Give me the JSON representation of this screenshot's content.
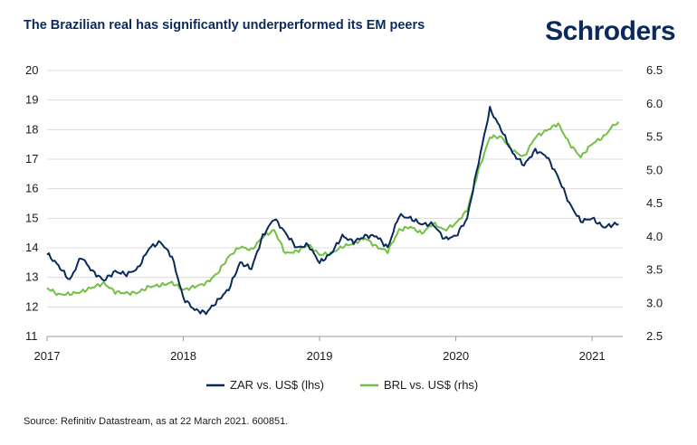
{
  "header": {
    "title": "The Brazilian real has significantly underperformed its EM peers",
    "brand": "Schroders"
  },
  "footer": {
    "source": "Source: Refinitiv Datastream, as at 22 March 2021. 600851."
  },
  "colors": {
    "zar": "#0b2a5b",
    "brl": "#72c045",
    "grid": "#dcdcdc",
    "axis": "#9a9a9a"
  },
  "chart_data": {
    "type": "line",
    "title": "The Brazilian real has significantly underperformed its EM peers",
    "grid": "horizontal",
    "legend_position": "bottom-center",
    "x_ticks": [
      "2017",
      "2018",
      "2019",
      "2020",
      "2021"
    ],
    "xlim": [
      "2017-01",
      "2021-03"
    ],
    "y_left": {
      "ylim": [
        11,
        20
      ],
      "ticks": [
        "20",
        "19",
        "18",
        "17",
        "16",
        "15",
        "14",
        "13",
        "12",
        "11"
      ]
    },
    "y_right": {
      "ylim": [
        2.5,
        6.5
      ],
      "ticks": [
        "6.5",
        "6.0",
        "5.5",
        "5.0",
        "4.5",
        "4.0",
        "3.5",
        "3.0",
        "2.5"
      ]
    },
    "series": [
      {
        "name": "ZAR vs. US$ (lhs)",
        "axis": "left",
        "x": [
          "2017-01",
          "2017-02",
          "2017-03",
          "2017-04",
          "2017-05",
          "2017-06",
          "2017-07",
          "2017-08",
          "2017-09",
          "2017-10",
          "2017-11",
          "2017-12",
          "2018-01",
          "2018-02",
          "2018-03",
          "2018-04",
          "2018-05",
          "2018-06",
          "2018-07",
          "2018-08",
          "2018-09",
          "2018-10",
          "2018-11",
          "2018-12",
          "2019-01",
          "2019-02",
          "2019-03",
          "2019-04",
          "2019-05",
          "2019-06",
          "2019-07",
          "2019-08",
          "2019-09",
          "2019-10",
          "2019-11",
          "2019-12",
          "2020-01",
          "2020-02",
          "2020-03",
          "2020-04",
          "2020-05",
          "2020-06",
          "2020-07",
          "2020-08",
          "2020-09",
          "2020-10",
          "2020-11",
          "2020-12",
          "2021-01",
          "2021-02",
          "2021-03"
        ],
        "values": [
          13.8,
          13.4,
          12.9,
          13.7,
          13.2,
          12.9,
          13.2,
          13.1,
          13.3,
          14.0,
          14.2,
          13.7,
          12.3,
          11.9,
          11.8,
          12.2,
          12.6,
          13.5,
          13.3,
          14.4,
          15.0,
          14.5,
          14.0,
          14.1,
          13.5,
          13.8,
          14.4,
          14.2,
          14.4,
          14.4,
          14.0,
          15.1,
          15.0,
          14.8,
          14.8,
          14.3,
          14.4,
          15.0,
          16.9,
          18.7,
          18.0,
          17.2,
          16.8,
          17.3,
          17.1,
          16.4,
          15.5,
          14.9,
          15.0,
          14.7,
          14.8
        ]
      },
      {
        "name": "BRL vs. US$ (rhs)",
        "axis": "right",
        "x": [
          "2017-01",
          "2017-02",
          "2017-03",
          "2017-04",
          "2017-05",
          "2017-06",
          "2017-07",
          "2017-08",
          "2017-09",
          "2017-10",
          "2017-11",
          "2017-12",
          "2018-01",
          "2018-02",
          "2018-03",
          "2018-04",
          "2018-05",
          "2018-06",
          "2018-07",
          "2018-08",
          "2018-09",
          "2018-10",
          "2018-11",
          "2018-12",
          "2019-01",
          "2019-02",
          "2019-03",
          "2019-04",
          "2019-05",
          "2019-06",
          "2019-07",
          "2019-08",
          "2019-09",
          "2019-10",
          "2019-11",
          "2019-12",
          "2020-01",
          "2020-02",
          "2020-03",
          "2020-04",
          "2020-05",
          "2020-06",
          "2020-07",
          "2020-08",
          "2020-09",
          "2020-10",
          "2020-11",
          "2020-12",
          "2021-01",
          "2021-02",
          "2021-03"
        ],
        "values": [
          3.23,
          3.13,
          3.14,
          3.17,
          3.24,
          3.3,
          3.17,
          3.15,
          3.16,
          3.25,
          3.27,
          3.31,
          3.2,
          3.25,
          3.3,
          3.45,
          3.7,
          3.85,
          3.8,
          4.0,
          4.1,
          3.75,
          3.78,
          3.88,
          3.73,
          3.75,
          3.85,
          3.9,
          3.98,
          3.85,
          3.78,
          4.1,
          4.15,
          4.05,
          4.2,
          4.1,
          4.2,
          4.4,
          5.0,
          5.5,
          5.5,
          5.3,
          5.2,
          5.5,
          5.6,
          5.7,
          5.4,
          5.2,
          5.4,
          5.5,
          5.7
        ]
      }
    ]
  }
}
